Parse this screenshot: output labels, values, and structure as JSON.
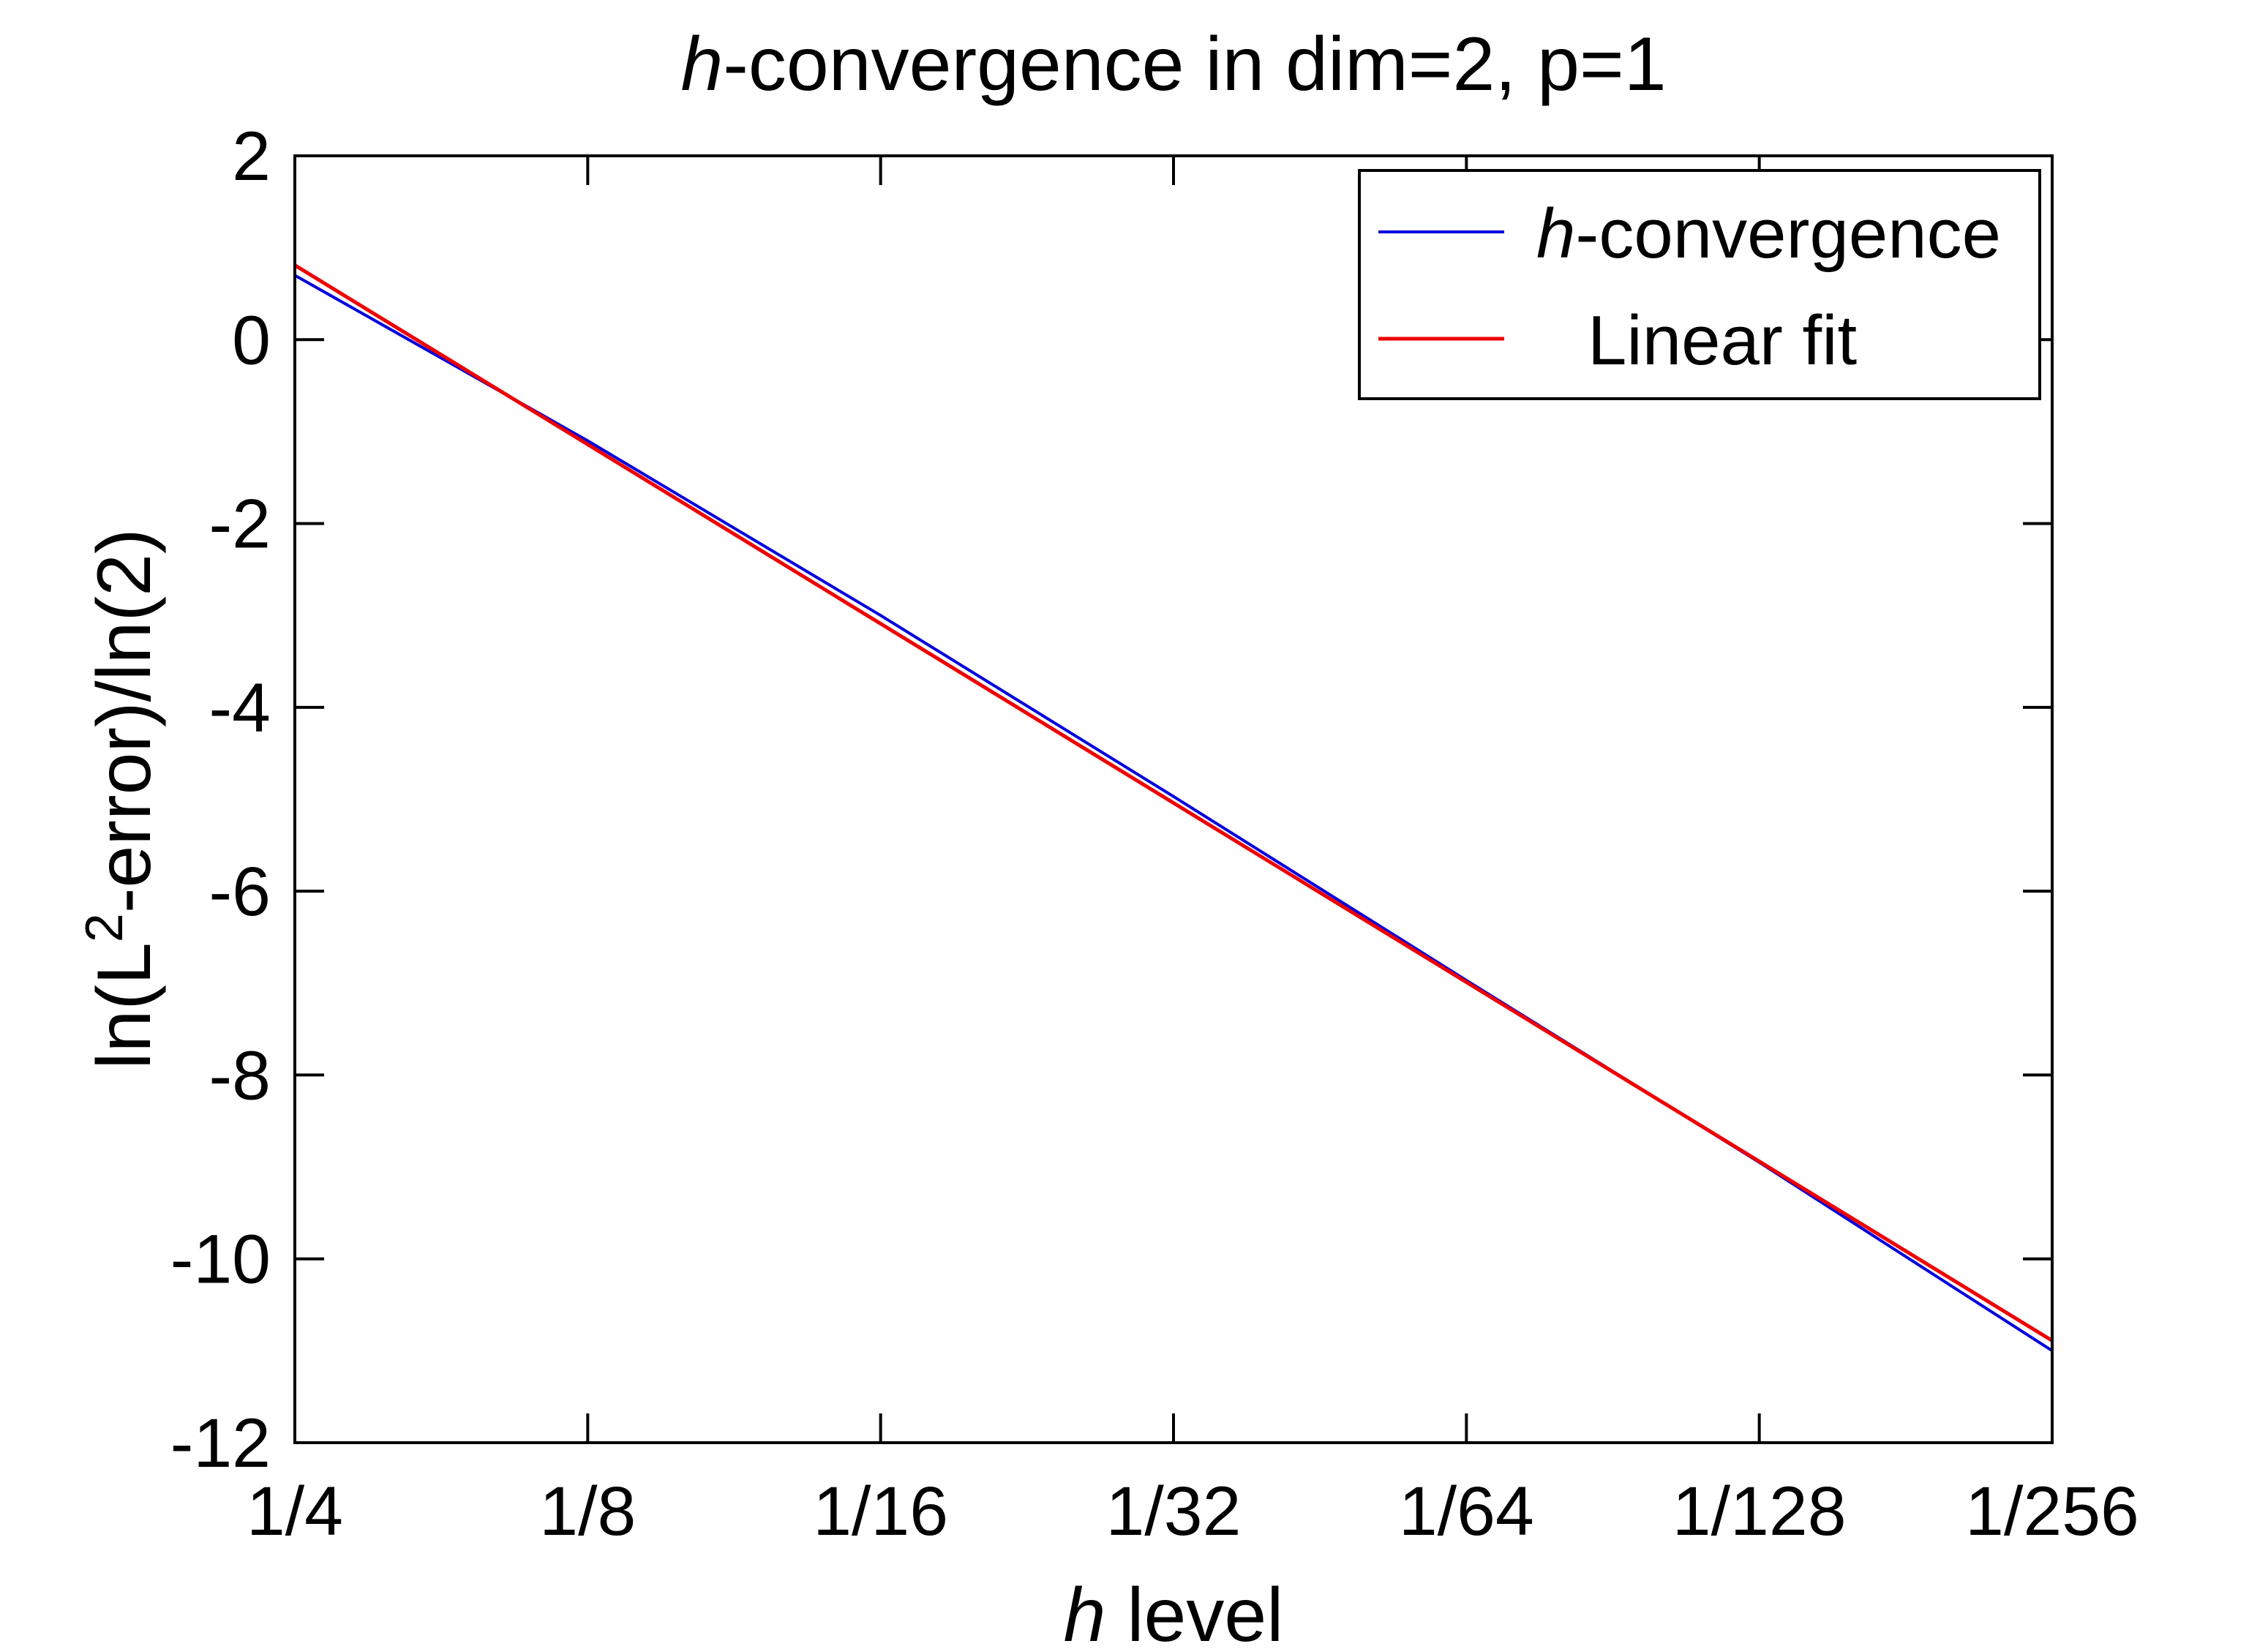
{
  "title": {
    "italic_part": "h",
    "regular_part": "-convergence in dim=2, p=1"
  },
  "axes": {
    "x": {
      "label_italic": "h",
      "label_regular": " level",
      "tick_labels": [
        "1/4",
        "1/8",
        "1/16",
        "1/32",
        "1/64",
        "1/128",
        "1/256"
      ]
    },
    "y": {
      "label_prefix": "ln(L",
      "label_superscript": "2",
      "label_suffix": "-error)/ln(2)",
      "tick_labels": [
        "2",
        "0",
        "-2",
        "-4",
        "-6",
        "-8",
        "-10",
        "-12"
      ],
      "tick_values": [
        2,
        0,
        -2,
        -4,
        -6,
        -8,
        -10,
        -12
      ]
    }
  },
  "legend": {
    "entries": [
      {
        "label_italic": "h",
        "label_regular": "-convergence",
        "color": "#0000DD"
      },
      {
        "label_italic": "",
        "label_regular": "Linear fit",
        "color": "#EE0000"
      }
    ]
  },
  "chart_data": {
    "type": "line",
    "title": "h-convergence in dim=2, p=1",
    "xlabel": "h level",
    "ylabel": "ln(L^2-error)/ln(2)",
    "categories": [
      "1/4",
      "1/8",
      "1/16",
      "1/32",
      "1/64",
      "1/128",
      "1/256"
    ],
    "series": [
      {
        "name": "h-convergence",
        "color": "#0000DD",
        "stroke_width": 4,
        "values": [
          0.7,
          -1.1,
          -3.0,
          -4.97,
          -6.97,
          -8.95,
          -11.0
        ]
      },
      {
        "name": "Linear fit",
        "color": "#EE0000",
        "stroke_width": 5,
        "values": [
          0.81,
          -1.14,
          -3.09,
          -5.04,
          -6.99,
          -8.94,
          -10.89
        ]
      }
    ],
    "ylim": [
      -12,
      2
    ],
    "y_tick_step": 2,
    "grid": false,
    "legend_position": "top-right-inside",
    "box": true,
    "tick_direction": "in"
  }
}
